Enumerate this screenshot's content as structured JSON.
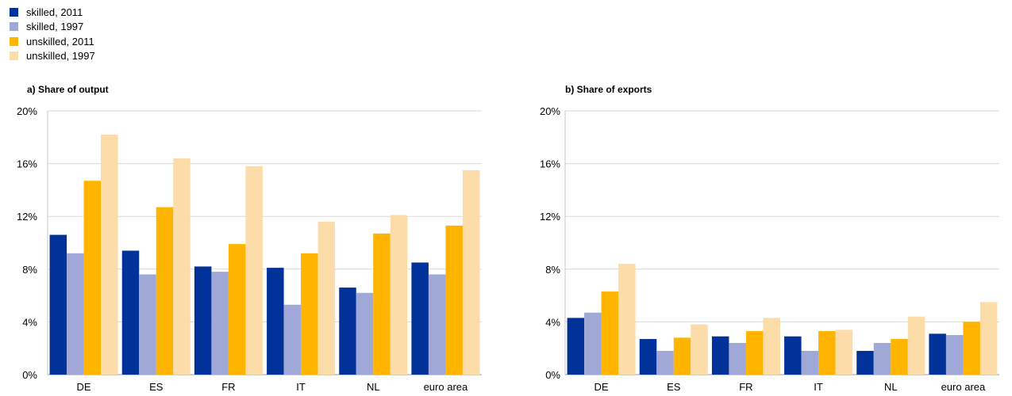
{
  "legend": {
    "items": [
      {
        "label": "skilled, 2011",
        "color": "#003299"
      },
      {
        "label": "skilled, 1997",
        "color": "#A0A8D8"
      },
      {
        "label": "unskilled, 2011",
        "color": "#FFB400"
      },
      {
        "label": "unskilled, 1997",
        "color": "#FCDCA8"
      }
    ]
  },
  "chart_data": [
    {
      "type": "bar",
      "title": "a) Share of output",
      "xlabel": "",
      "ylabel": "",
      "ylim": [
        0,
        20
      ],
      "yticks": [
        "0%",
        "4%",
        "8%",
        "12%",
        "16%",
        "20%"
      ],
      "categories": [
        "DE",
        "ES",
        "FR",
        "IT",
        "NL",
        "euro area"
      ],
      "series": [
        {
          "name": "skilled, 2011",
          "values": [
            10.6,
            9.4,
            8.2,
            8.1,
            6.6,
            8.5
          ]
        },
        {
          "name": "skilled, 1997",
          "values": [
            9.2,
            7.6,
            7.8,
            5.3,
            6.2,
            7.6
          ]
        },
        {
          "name": "unskilled, 2011",
          "values": [
            14.7,
            12.7,
            9.9,
            9.2,
            10.7,
            11.3
          ]
        },
        {
          "name": "unskilled, 1997",
          "values": [
            18.2,
            16.4,
            15.8,
            11.6,
            12.1,
            15.5
          ]
        }
      ]
    },
    {
      "type": "bar",
      "title": "b) Share of exports",
      "xlabel": "",
      "ylabel": "",
      "ylim": [
        0,
        20
      ],
      "yticks": [
        "0%",
        "4%",
        "8%",
        "12%",
        "16%",
        "20%"
      ],
      "categories": [
        "DE",
        "ES",
        "FR",
        "IT",
        "NL",
        "euro area"
      ],
      "series": [
        {
          "name": "skilled, 2011",
          "values": [
            4.3,
            2.7,
            2.9,
            2.9,
            1.8,
            3.1
          ]
        },
        {
          "name": "skilled, 1997",
          "values": [
            4.7,
            1.8,
            2.4,
            1.8,
            2.4,
            3.0
          ]
        },
        {
          "name": "unskilled, 2011",
          "values": [
            6.3,
            2.8,
            3.3,
            3.3,
            2.7,
            4.0
          ]
        },
        {
          "name": "unskilled, 1997",
          "values": [
            8.4,
            3.8,
            4.3,
            3.4,
            4.4,
            5.5
          ]
        }
      ]
    }
  ]
}
